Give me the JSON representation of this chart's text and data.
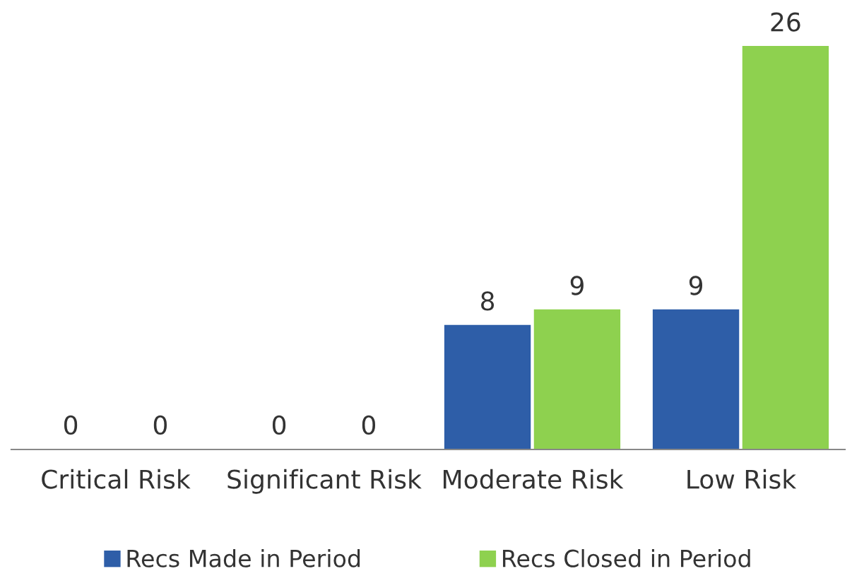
{
  "chart_data": {
    "type": "bar",
    "categories": [
      "Critical Risk",
      "Significant Risk",
      "Moderate Risk",
      "Low Risk"
    ],
    "series": [
      {
        "name": "Recs Made in Period",
        "color": "#2e5ea8",
        "values": [
          0,
          0,
          8,
          9
        ]
      },
      {
        "name": "Recs Closed in Period",
        "color": "#8ed14f",
        "values": [
          0,
          0,
          9,
          26
        ]
      }
    ],
    "data_labels": true,
    "legend": "bottom",
    "grid": false
  }
}
